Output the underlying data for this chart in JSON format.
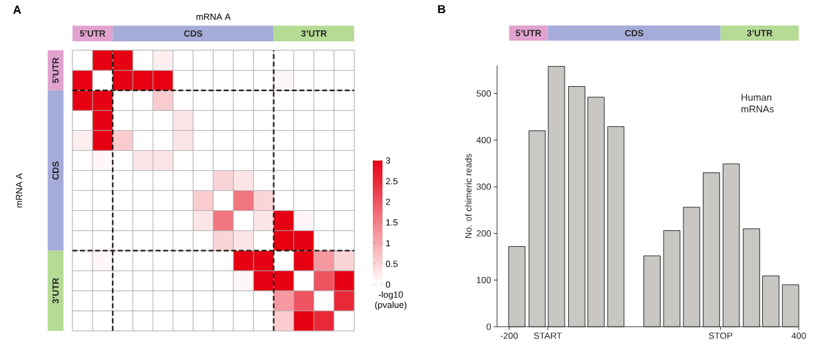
{
  "chart_data": [
    {
      "type": "heatmap",
      "title": "A",
      "xlabel": "mRNA A",
      "ylabel": "mRNA A",
      "clabel": "-log10 (pvalue)",
      "categories": [
        null,
        null,
        null,
        null,
        null,
        null,
        null,
        null,
        null,
        null,
        null,
        null,
        null,
        null
      ],
      "y_categories": [
        null,
        null,
        null,
        null,
        null,
        null,
        null,
        null,
        null,
        null,
        null,
        null,
        null,
        null
      ],
      "cells": [
        [
          0,
          3,
          3,
          0,
          0.2,
          0,
          0,
          0,
          0,
          0,
          0,
          0,
          0,
          0
        ],
        [
          3,
          0,
          3,
          3,
          3,
          0,
          0,
          0,
          0,
          0,
          0.1,
          0,
          0,
          0
        ],
        [
          3,
          3,
          0,
          0,
          0.6,
          0,
          0,
          0,
          0,
          0,
          0,
          0,
          0,
          0
        ],
        [
          0,
          3,
          0,
          0,
          0,
          0.3,
          0,
          0,
          0,
          0,
          0,
          0,
          0,
          0
        ],
        [
          0.2,
          3,
          0.6,
          0,
          0,
          0.3,
          0,
          0,
          0,
          0,
          0,
          0,
          0,
          0
        ],
        [
          0,
          0.1,
          0,
          0.3,
          0.3,
          0,
          0,
          0,
          0,
          0,
          0,
          0,
          0,
          0
        ],
        [
          0,
          0,
          0,
          0,
          0,
          0,
          0,
          0.5,
          0.3,
          0,
          0,
          0,
          0,
          0
        ],
        [
          0,
          0,
          0,
          0,
          0,
          0,
          0.6,
          0,
          1.6,
          0.5,
          0,
          0,
          0,
          0
        ],
        [
          0,
          0,
          0,
          0,
          0,
          0,
          0.3,
          1.6,
          0,
          0.3,
          3,
          0.1,
          0,
          0
        ],
        [
          0,
          0,
          0,
          0,
          0,
          0,
          0,
          0.5,
          0.3,
          0,
          3,
          3,
          0,
          0
        ],
        [
          0,
          0.1,
          0,
          0,
          0,
          0,
          0,
          0,
          3,
          3,
          0,
          3,
          1.2,
          0.5
        ],
        [
          0,
          0,
          0,
          0,
          0,
          0,
          0,
          0,
          0.1,
          3,
          3,
          0,
          2,
          3
        ],
        [
          0,
          0,
          0,
          0,
          0,
          0,
          0,
          0,
          0,
          0,
          1.2,
          2,
          0,
          2.5
        ],
        [
          0,
          0,
          0,
          0,
          0,
          0,
          0,
          0,
          0,
          0,
          0.6,
          3,
          2.5,
          0
        ]
      ],
      "clim": [
        0,
        3
      ],
      "cticks": [
        0,
        0.5,
        1,
        1.5,
        2,
        2.5,
        3
      ],
      "annotations": [
        "5’UTR",
        "CDS",
        "3’UTR",
        "5’UTR",
        "CDS",
        "3’UTR"
      ]
    },
    {
      "type": "bar",
      "title": "B",
      "ylabel": "No. of chimeric reads",
      "x": [
        -184,
        -142,
        -102,
        -60,
        -20,
        21,
        96,
        137,
        178,
        219,
        260,
        302,
        342,
        383
      ],
      "values": [
        172,
        420,
        558,
        515,
        492,
        429,
        152,
        206,
        256,
        330,
        349,
        210,
        109,
        90
      ],
      "color": "#c8c7c3",
      "xlim": [
        -225,
        400
      ],
      "ylim": [
        0,
        560
      ],
      "xticks": [
        -200,
        {
          "value": -120,
          "label": "START"
        },
        {
          "value": 238,
          "label": "STOP"
        },
        400
      ],
      "yticks": [
        0,
        100,
        200,
        300,
        400,
        500
      ],
      "annotations": [
        "5’UTR",
        "CDS",
        "3’UTR",
        "Human mRNAs"
      ]
    }
  ]
}
